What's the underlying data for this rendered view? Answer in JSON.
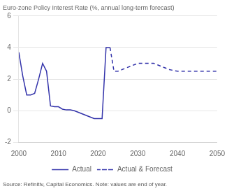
{
  "chart_data": {
    "type": "line",
    "title": "Euro-zone Policy Interest Rate (%, annual long-term forecast)",
    "annotations": [
      "Source: Refinitiv, Capital Economics. Note: values are end of year."
    ],
    "x": [
      2000,
      2001,
      2002,
      2003,
      2004,
      2005,
      2006,
      2007,
      2008,
      2009,
      2010,
      2011,
      2012,
      2013,
      2014,
      2015,
      2016,
      2017,
      2018,
      2019,
      2020,
      2021,
      2022,
      2023,
      2024,
      2025,
      2026,
      2027,
      2028,
      2029,
      2030,
      2031,
      2032,
      2033,
      2034,
      2035,
      2036,
      2037,
      2038,
      2039,
      2040,
      2041,
      2042,
      2043,
      2044,
      2045,
      2046,
      2047,
      2048,
      2049,
      2050
    ],
    "series": [
      {
        "name": "Actual",
        "color": "#3333AA",
        "line_style": "solid",
        "values": [
          3.7,
          2.2,
          1.0,
          1.0,
          1.1,
          2.0,
          3.0,
          2.5,
          0.3,
          0.25,
          0.25,
          0.1,
          0.05,
          0.05,
          0.0,
          -0.1,
          -0.2,
          -0.3,
          -0.4,
          -0.5,
          -0.5,
          -0.5,
          4.0,
          4.0,
          null,
          null,
          null,
          null,
          null,
          null,
          null,
          null,
          null,
          null,
          null,
          null,
          null,
          null,
          null,
          null,
          null,
          null,
          null,
          null,
          null,
          null,
          null,
          null,
          null,
          null,
          null
        ]
      },
      {
        "name": "Actual & Forecast",
        "color": "#3333AA",
        "line_style": "dashed",
        "values": [
          null,
          null,
          null,
          null,
          null,
          null,
          null,
          null,
          null,
          null,
          null,
          null,
          null,
          null,
          null,
          null,
          null,
          null,
          null,
          null,
          null,
          null,
          null,
          4.0,
          2.5,
          2.5,
          2.6,
          2.7,
          2.8,
          2.9,
          3.0,
          3.0,
          3.0,
          3.0,
          3.0,
          2.9,
          2.8,
          2.7,
          2.6,
          2.55,
          2.5,
          2.5,
          2.5,
          2.5,
          2.5,
          2.5,
          2.5,
          2.5,
          2.5,
          2.5,
          2.5
        ]
      }
    ],
    "xlim": [
      2000,
      2050
    ],
    "xticks": [
      2000,
      2010,
      2020,
      2030,
      2040,
      2050
    ],
    "ylim": [
      -2,
      6
    ],
    "yticks": [
      -2,
      0,
      2,
      4,
      6
    ],
    "grid": "y",
    "legend": "bottom"
  }
}
